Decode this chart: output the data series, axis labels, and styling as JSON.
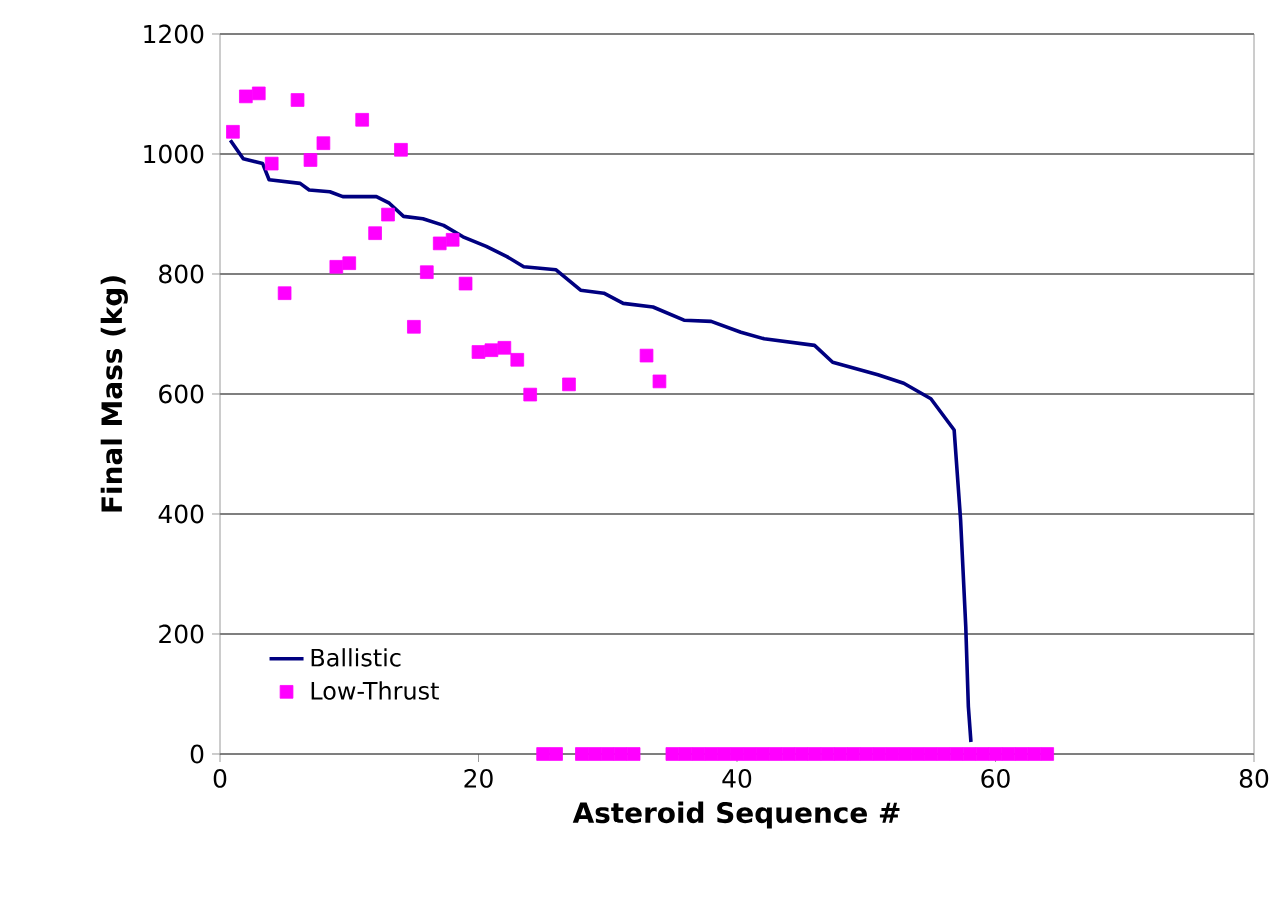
{
  "chart_data": {
    "type": "scatter",
    "xlabel": "Asteroid Sequence #",
    "ylabel": "Final Mass (kg)",
    "xlim": [
      0,
      80
    ],
    "ylim": [
      0,
      1200
    ],
    "xticks": [
      0,
      20,
      40,
      60,
      80
    ],
    "yticks": [
      0,
      200,
      400,
      600,
      800,
      1000,
      1200
    ],
    "grid": "y",
    "legend": "bottom left",
    "series": [
      {
        "name": "Ballistic",
        "type": "line",
        "color": "#000080",
        "marker": "none",
        "x": [
          0.8,
          1.8,
          3.3,
          3.8,
          6.2,
          6.9,
          8.5,
          9.5,
          12.1,
          13.1,
          14.2,
          15.7,
          17.3,
          18.8,
          20.6,
          22.2,
          23.5,
          26.0,
          27.9,
          29.7,
          31.2,
          33.5,
          35.9,
          38.0,
          40.3,
          42.1,
          46.0,
          47.4,
          50.9,
          52.9,
          55.0,
          56.8,
          57.3,
          57.7,
          57.9,
          58.1
        ],
        "values": [
          1023,
          992,
          984,
          957,
          951,
          940,
          937,
          929,
          929,
          918,
          896,
          892,
          881,
          862,
          846,
          829,
          812,
          807,
          773,
          768,
          751,
          745,
          723,
          721,
          703,
          692,
          681,
          653,
          632,
          618,
          592,
          540,
          390,
          212,
          79,
          20
        ]
      },
      {
        "name": "Low-Thrust",
        "color": "#ff00ff",
        "marker": "square",
        "x": [
          1,
          2,
          3,
          4,
          5,
          6,
          7,
          8,
          9,
          10,
          11,
          12,
          13,
          14,
          15,
          16,
          17,
          18,
          19,
          20,
          21,
          22,
          23,
          24,
          25,
          26,
          27,
          28,
          29,
          30,
          31,
          32,
          33,
          34,
          35,
          36,
          37,
          38,
          39,
          40,
          41,
          42,
          43,
          44,
          45,
          46,
          47,
          48,
          49,
          50,
          51,
          52,
          53,
          54,
          55,
          56,
          57,
          58,
          59,
          60,
          61,
          62,
          63,
          64
        ],
        "values": [
          1037,
          1096,
          1101,
          984,
          768,
          1090,
          990,
          1018,
          812,
          818,
          1057,
          868,
          899,
          1007,
          712,
          803,
          851,
          857,
          784,
          670,
          673,
          677,
          657,
          599,
          0,
          0,
          616,
          0,
          0,
          0,
          0,
          0,
          664,
          621,
          0,
          0,
          0,
          0,
          0,
          0,
          0,
          0,
          0,
          0,
          0,
          0,
          0,
          0,
          0,
          0,
          0,
          0,
          0,
          0,
          0,
          0,
          0,
          0,
          0,
          0,
          0,
          0,
          0,
          0
        ]
      }
    ]
  }
}
